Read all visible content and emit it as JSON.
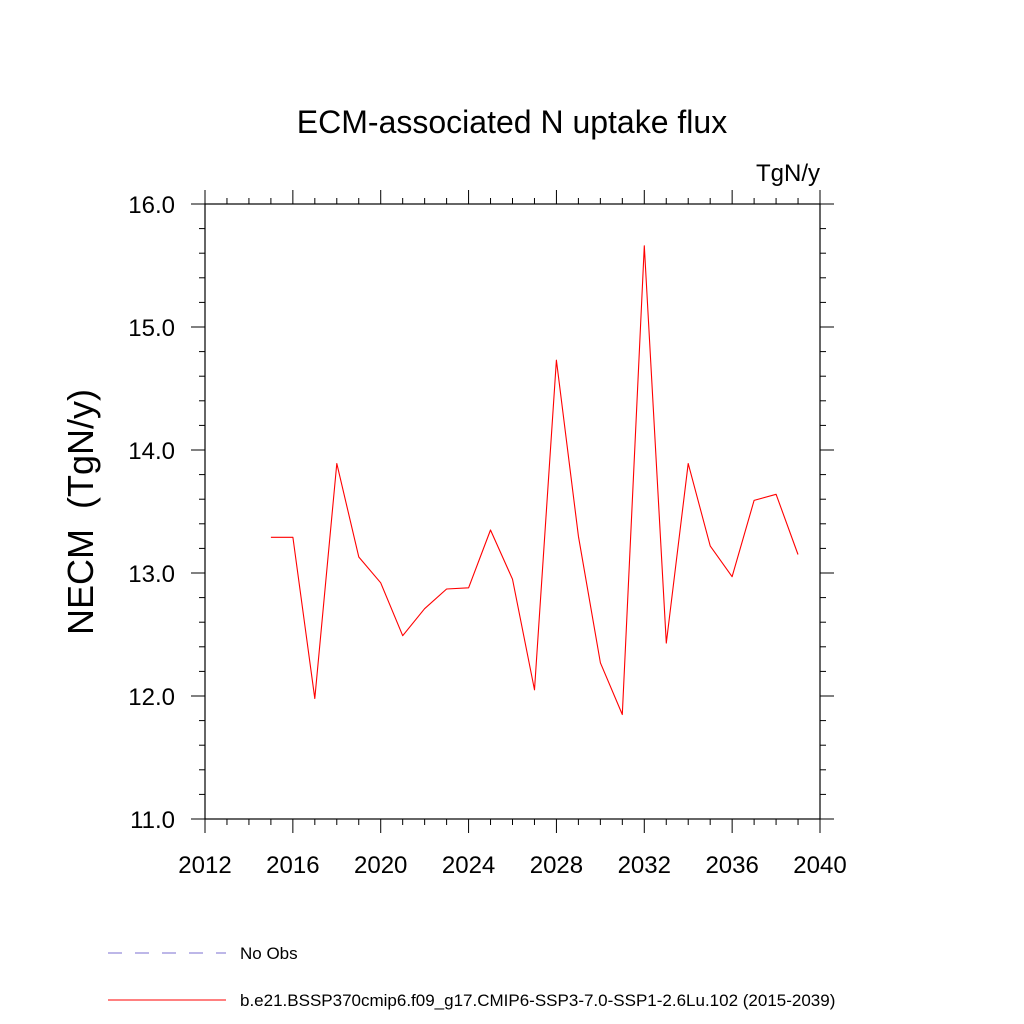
{
  "chart_data": {
    "type": "line",
    "title": "ECM-associated N uptake flux",
    "units": "TgN/y",
    "ylabel": "NECM  (TgN/y)",
    "xlabel": "",
    "xlim": [
      2012,
      2040
    ],
    "ylim": [
      11.0,
      16.0
    ],
    "x_ticks": [
      2012,
      2016,
      2020,
      2024,
      2028,
      2032,
      2036,
      2040
    ],
    "y_ticks": [
      11.0,
      12.0,
      13.0,
      14.0,
      15.0,
      16.0
    ],
    "grid": false,
    "legend_position": "bottom",
    "x": [
      2015,
      2016,
      2017,
      2018,
      2019,
      2020,
      2021,
      2022,
      2023,
      2024,
      2025,
      2026,
      2027,
      2028,
      2029,
      2030,
      2031,
      2032,
      2033,
      2034,
      2035,
      2036,
      2037,
      2038,
      2039
    ],
    "series": [
      {
        "name": "b.e21.BSSP370cmip6.f09_g17.CMIP6-SSP3-7.0-SSP1-2.6Lu.102 (2015-2039)",
        "color": "#ff0000",
        "style": "solid",
        "values": [
          13.29,
          13.29,
          11.98,
          13.89,
          13.13,
          12.92,
          12.49,
          12.71,
          12.87,
          12.88,
          13.35,
          12.95,
          12.05,
          14.73,
          13.3,
          12.27,
          11.85,
          15.66,
          12.43,
          13.89,
          13.22,
          12.97,
          13.59,
          13.64,
          13.15
        ]
      }
    ],
    "legend": [
      {
        "label": "No Obs",
        "color": "#7b6fd0",
        "style": "dashed"
      },
      {
        "label": "b.e21.BSSP370cmip6.f09_g17.CMIP6-SSP3-7.0-SSP1-2.6Lu.102 (2015-2039)",
        "color": "#ff0000",
        "style": "solid"
      }
    ]
  }
}
